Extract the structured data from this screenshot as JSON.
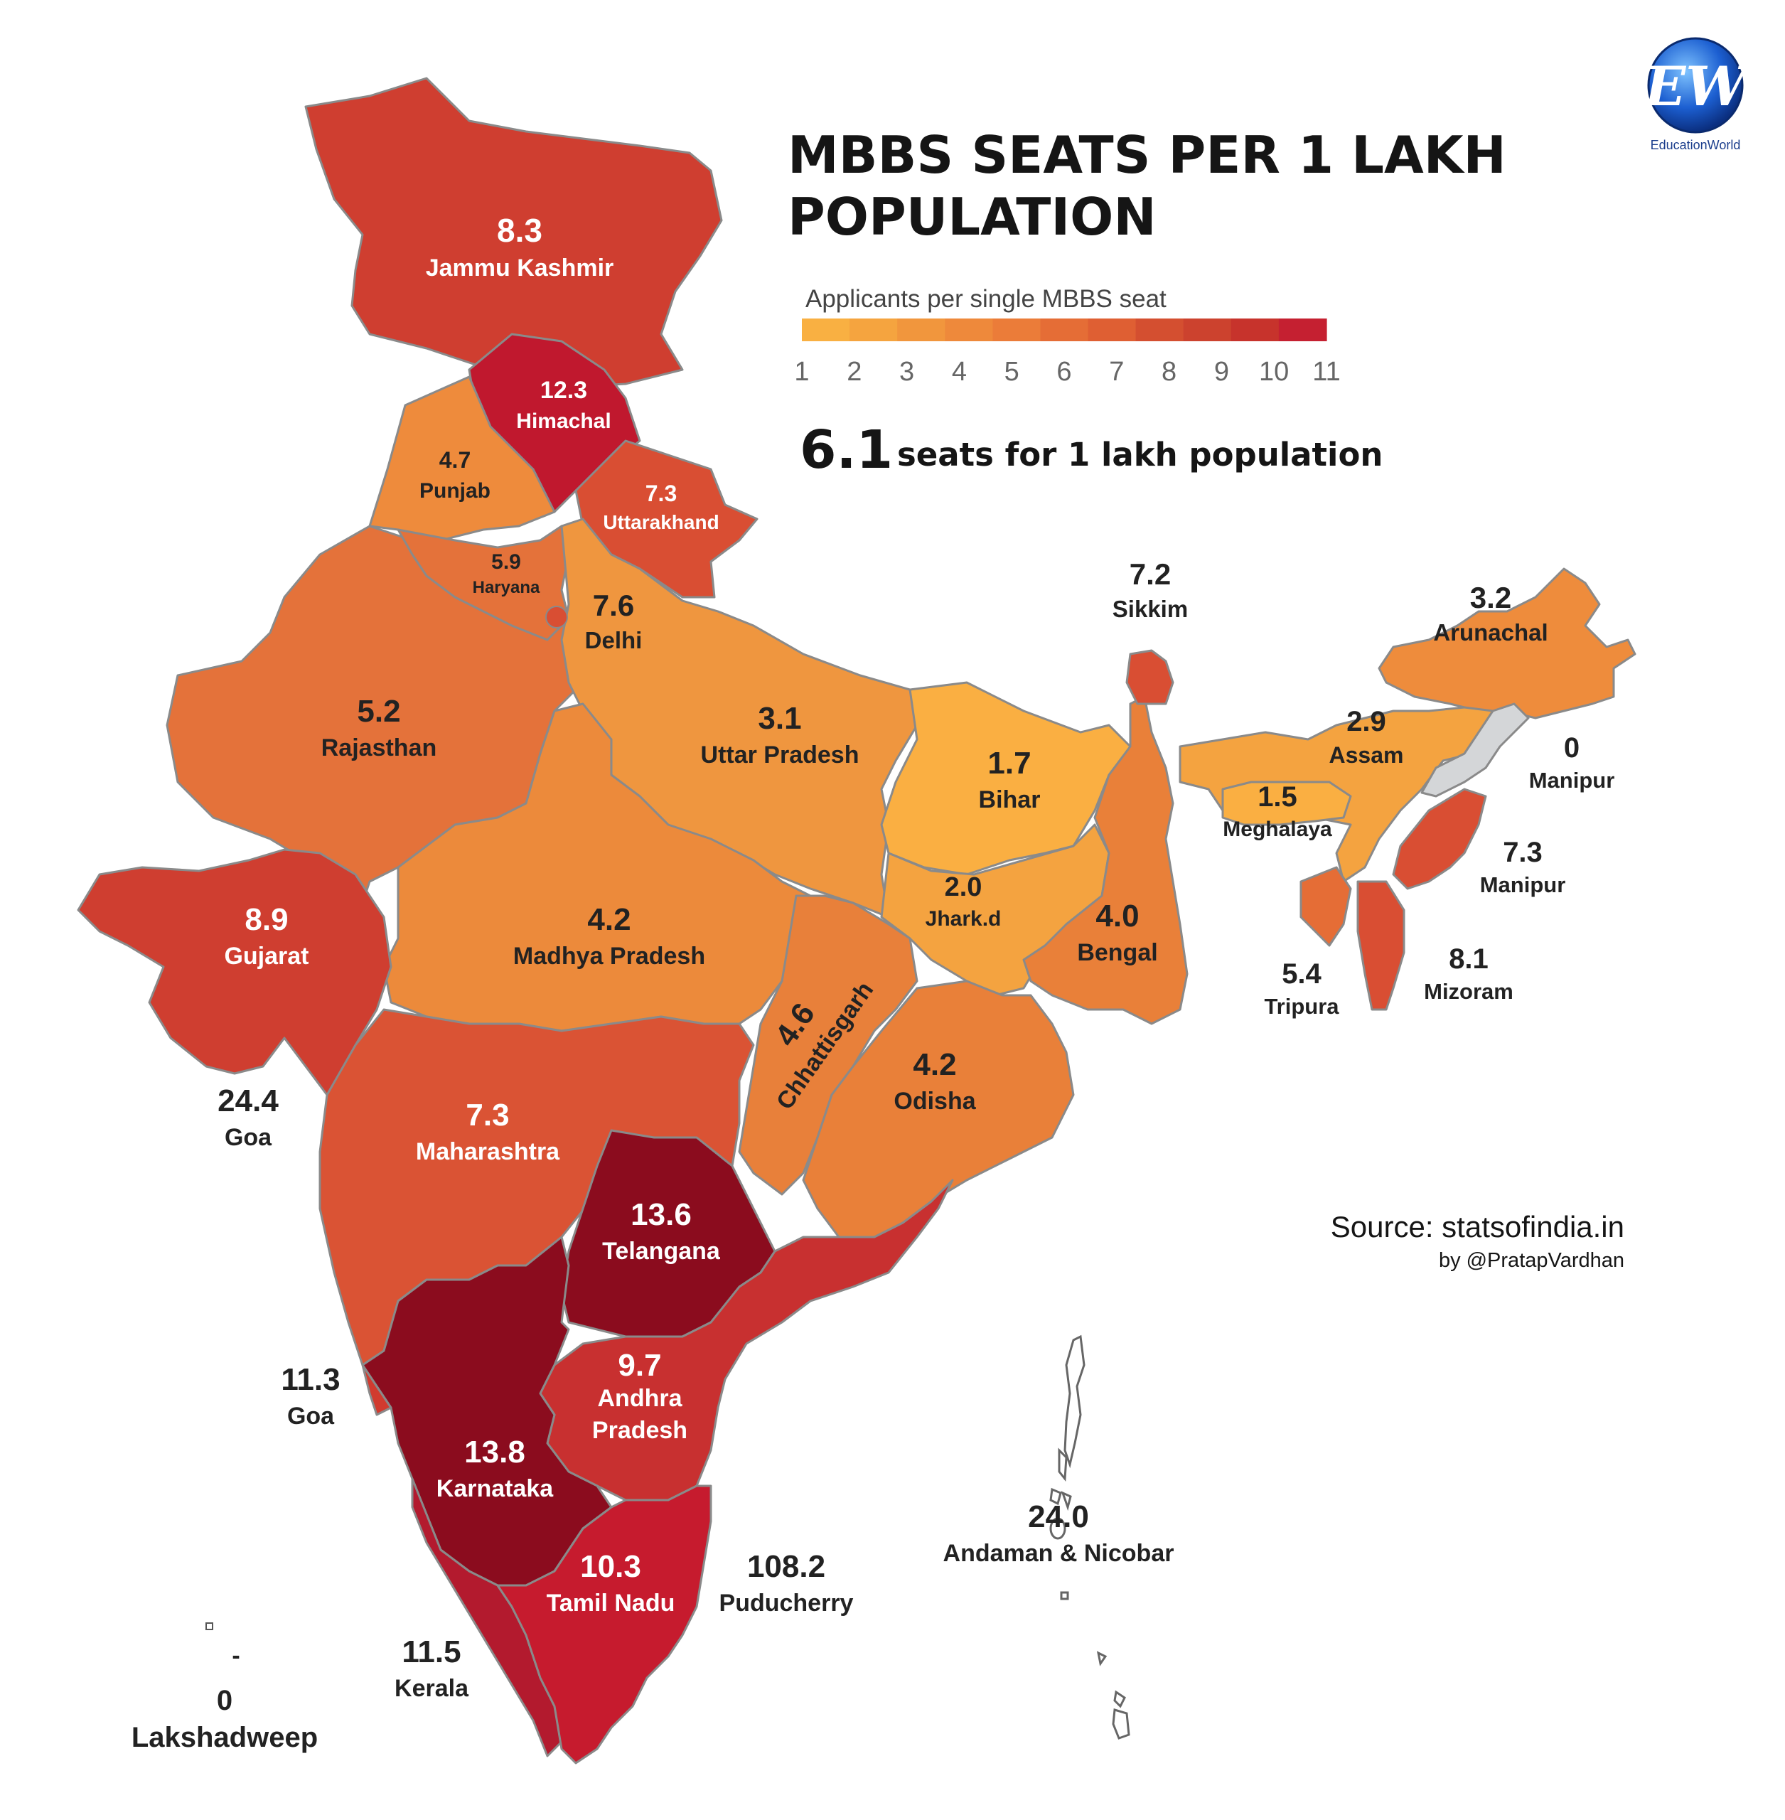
{
  "title_line1": "MBBS SEATS PER 1 LAKH",
  "title_line2": "POPULATION",
  "legend": {
    "label": "Applicants per single MBBS seat",
    "ticks": [
      "1",
      "2",
      "3",
      "4",
      "5",
      "6",
      "7",
      "8",
      "9",
      "10",
      "11"
    ],
    "colors": [
      "#f9b042",
      "#f5a43f",
      "#f1963d",
      "#ee893b",
      "#eb7c39",
      "#e56d36",
      "#df5f33",
      "#d44f30",
      "#cc422e",
      "#c7332c",
      "#c52031"
    ]
  },
  "national": {
    "value": "6.1",
    "text": "seats for 1 lakh population"
  },
  "source": {
    "line1": "Source: statsofindia.in",
    "line2": "by @PratapVardhan"
  },
  "logo": {
    "mark": "EW",
    "caption": "EducationWorld"
  },
  "state_labels": [
    {
      "id": "jk",
      "value": "8.3",
      "name": "Jammu Kashmir"
    },
    {
      "id": "hp",
      "value": "12.3",
      "name": "Himachal"
    },
    {
      "id": "pb",
      "value": "4.7",
      "name": "Punjab"
    },
    {
      "id": "uk",
      "value": "7.3",
      "name": "Uttarakhand"
    },
    {
      "id": "hr",
      "value": "5.9",
      "name": "Haryana"
    },
    {
      "id": "dl",
      "value": "7.6",
      "name": "Delhi"
    },
    {
      "id": "rj",
      "value": "5.2",
      "name": "Rajasthan"
    },
    {
      "id": "up",
      "value": "3.1",
      "name": "Uttar Pradesh"
    },
    {
      "id": "br",
      "value": "1.7",
      "name": "Bihar"
    },
    {
      "id": "sk",
      "value": "7.2",
      "name": "Sikkim"
    },
    {
      "id": "ar",
      "value": "3.2",
      "name": "Arunachal"
    },
    {
      "id": "as",
      "value": "2.9",
      "name": "Assam"
    },
    {
      "id": "nl",
      "value": "0",
      "name": "Manipur"
    },
    {
      "id": "ml",
      "value": "1.5",
      "name": "Meghalaya"
    },
    {
      "id": "mn",
      "value": "7.3",
      "name": "Manipur"
    },
    {
      "id": "jh",
      "value": "2.0",
      "name": "Jhark.d"
    },
    {
      "id": "wb",
      "value": "4.0",
      "name": "Bengal"
    },
    {
      "id": "gj",
      "value": "8.9",
      "name": "Gujarat"
    },
    {
      "id": "mp",
      "value": "4.2",
      "name": "Madhya Pradesh"
    },
    {
      "id": "cg",
      "value": "4.6",
      "name": "Chhattisgarh"
    },
    {
      "id": "od",
      "value": "4.2",
      "name": "Odisha"
    },
    {
      "id": "tr",
      "value": "5.4",
      "name": "Tripura"
    },
    {
      "id": "mz",
      "value": "8.1",
      "name": "Mizoram"
    },
    {
      "id": "dd",
      "value": "24.4",
      "name": "Goa"
    },
    {
      "id": "mh",
      "value": "7.3",
      "name": "Maharashtra"
    },
    {
      "id": "tg",
      "value": "13.6",
      "name": "Telangana"
    },
    {
      "id": "ga",
      "value": "11.3",
      "name": "Goa"
    },
    {
      "id": "ap",
      "value": "9.7",
      "name": "Andhra",
      "name2": "Pradesh"
    },
    {
      "id": "ka",
      "value": "13.8",
      "name": "Karnataka"
    },
    {
      "id": "an",
      "value": "24.0",
      "name": "Andaman & Nicobar"
    },
    {
      "id": "tn",
      "value": "10.3",
      "name": "Tamil Nadu"
    },
    {
      "id": "py",
      "value": "108.2",
      "name": "Puducherry"
    },
    {
      "id": "kl",
      "value": "11.5",
      "name": "Kerala"
    },
    {
      "id": "ld",
      "value": "0",
      "name": "Lakshadweep",
      "dash": "-"
    }
  ]
}
